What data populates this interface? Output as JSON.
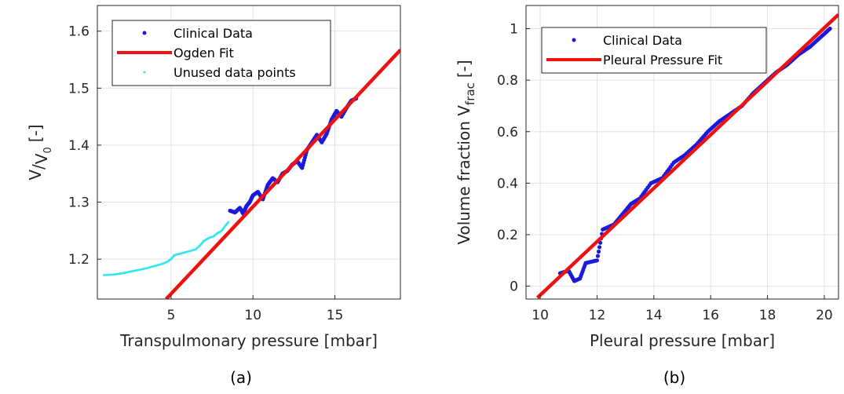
{
  "chart_data": [
    {
      "type": "scatter",
      "panel_label": "(a)",
      "xlabel": "Transpulmonary pressure [mbar]",
      "ylabel": {
        "main": "V",
        "slash": "/",
        "sub_v": "V",
        "sub_0": "0",
        "unit": "[-]"
      },
      "xlim": [
        0.5,
        19
      ],
      "ylim": [
        1.13,
        1.645
      ],
      "xticks": [
        5,
        10,
        15
      ],
      "yticks": [
        1.2,
        1.3,
        1.4,
        1.5,
        1.6
      ],
      "grid": true,
      "legend_position": "top-left",
      "colors": {
        "clinical": "#1a1adc",
        "fit": "#ee1111",
        "unused": "#33e6f2"
      },
      "series": [
        {
          "name": "Clinical Data",
          "kind": "points",
          "x": [
            8.6,
            8.9,
            9.2,
            9.4,
            9.6,
            9.8,
            10.0,
            10.3,
            10.6,
            10.9,
            11.2,
            11.5,
            11.8,
            12.1,
            12.4,
            12.7,
            13.0,
            13.3,
            13.6,
            13.9,
            14.2,
            14.5,
            14.8,
            15.1,
            15.4,
            15.7,
            16.0,
            16.3
          ],
          "y": [
            1.285,
            1.282,
            1.29,
            1.28,
            1.293,
            1.3,
            1.312,
            1.318,
            1.305,
            1.33,
            1.342,
            1.335,
            1.35,
            1.355,
            1.366,
            1.372,
            1.36,
            1.392,
            1.405,
            1.418,
            1.405,
            1.42,
            1.445,
            1.46,
            1.45,
            1.465,
            1.478,
            1.482
          ]
        },
        {
          "name": "Ogden Fit",
          "kind": "line",
          "x": [
            4.7,
            19
          ],
          "y": [
            1.13,
            1.567
          ]
        },
        {
          "name": "Unused data points",
          "kind": "points",
          "x": [
            0.9,
            1.5,
            2.0,
            2.5,
            3.0,
            3.5,
            4.0,
            4.5,
            4.8,
            5.0,
            5.2,
            5.6,
            6.0,
            6.5,
            6.8,
            7.0,
            7.3,
            7.6,
            7.8,
            8.1,
            8.3,
            8.5
          ],
          "y": [
            1.172,
            1.173,
            1.175,
            1.178,
            1.181,
            1.184,
            1.188,
            1.192,
            1.196,
            1.2,
            1.207,
            1.21,
            1.213,
            1.217,
            1.225,
            1.232,
            1.237,
            1.24,
            1.245,
            1.25,
            1.258,
            1.265
          ]
        }
      ]
    },
    {
      "type": "scatter",
      "panel_label": "(b)",
      "xlabel": "Pleural pressure [mbar]",
      "ylabel": {
        "main": "Volume fraction V",
        "sub": "frac",
        "unit": "[-]"
      },
      "xlim": [
        9.5,
        20.5
      ],
      "ylim": [
        -0.05,
        1.09
      ],
      "xticks": [
        10,
        12,
        14,
        16,
        18,
        20
      ],
      "yticks": [
        0,
        0.2,
        0.4,
        0.6,
        0.8,
        1
      ],
      "grid": true,
      "legend_position": "top-left",
      "colors": {
        "clinical": "#1a1adc",
        "fit": "#ee1111"
      },
      "series": [
        {
          "name": "Clinical Data",
          "kind": "points",
          "x": [
            10.7,
            11.0,
            11.2,
            11.4,
            11.6,
            12.0,
            12.2,
            12.6,
            12.9,
            13.2,
            13.5,
            13.9,
            14.3,
            14.7,
            15.1,
            15.5,
            15.9,
            16.3,
            16.7,
            17.1,
            17.5,
            17.9,
            18.3,
            18.7,
            19.1,
            19.5,
            19.9,
            20.2
          ],
          "y": [
            0.05,
            0.06,
            0.02,
            0.03,
            0.09,
            0.1,
            0.22,
            0.24,
            0.28,
            0.32,
            0.34,
            0.4,
            0.42,
            0.48,
            0.51,
            0.55,
            0.6,
            0.64,
            0.67,
            0.7,
            0.75,
            0.79,
            0.83,
            0.86,
            0.9,
            0.93,
            0.97,
            1.0
          ]
        },
        {
          "name": "Pleural Pressure Fit",
          "kind": "line",
          "x": [
            9.9,
            20.5
          ],
          "y": [
            -0.045,
            1.055
          ]
        }
      ]
    }
  ]
}
